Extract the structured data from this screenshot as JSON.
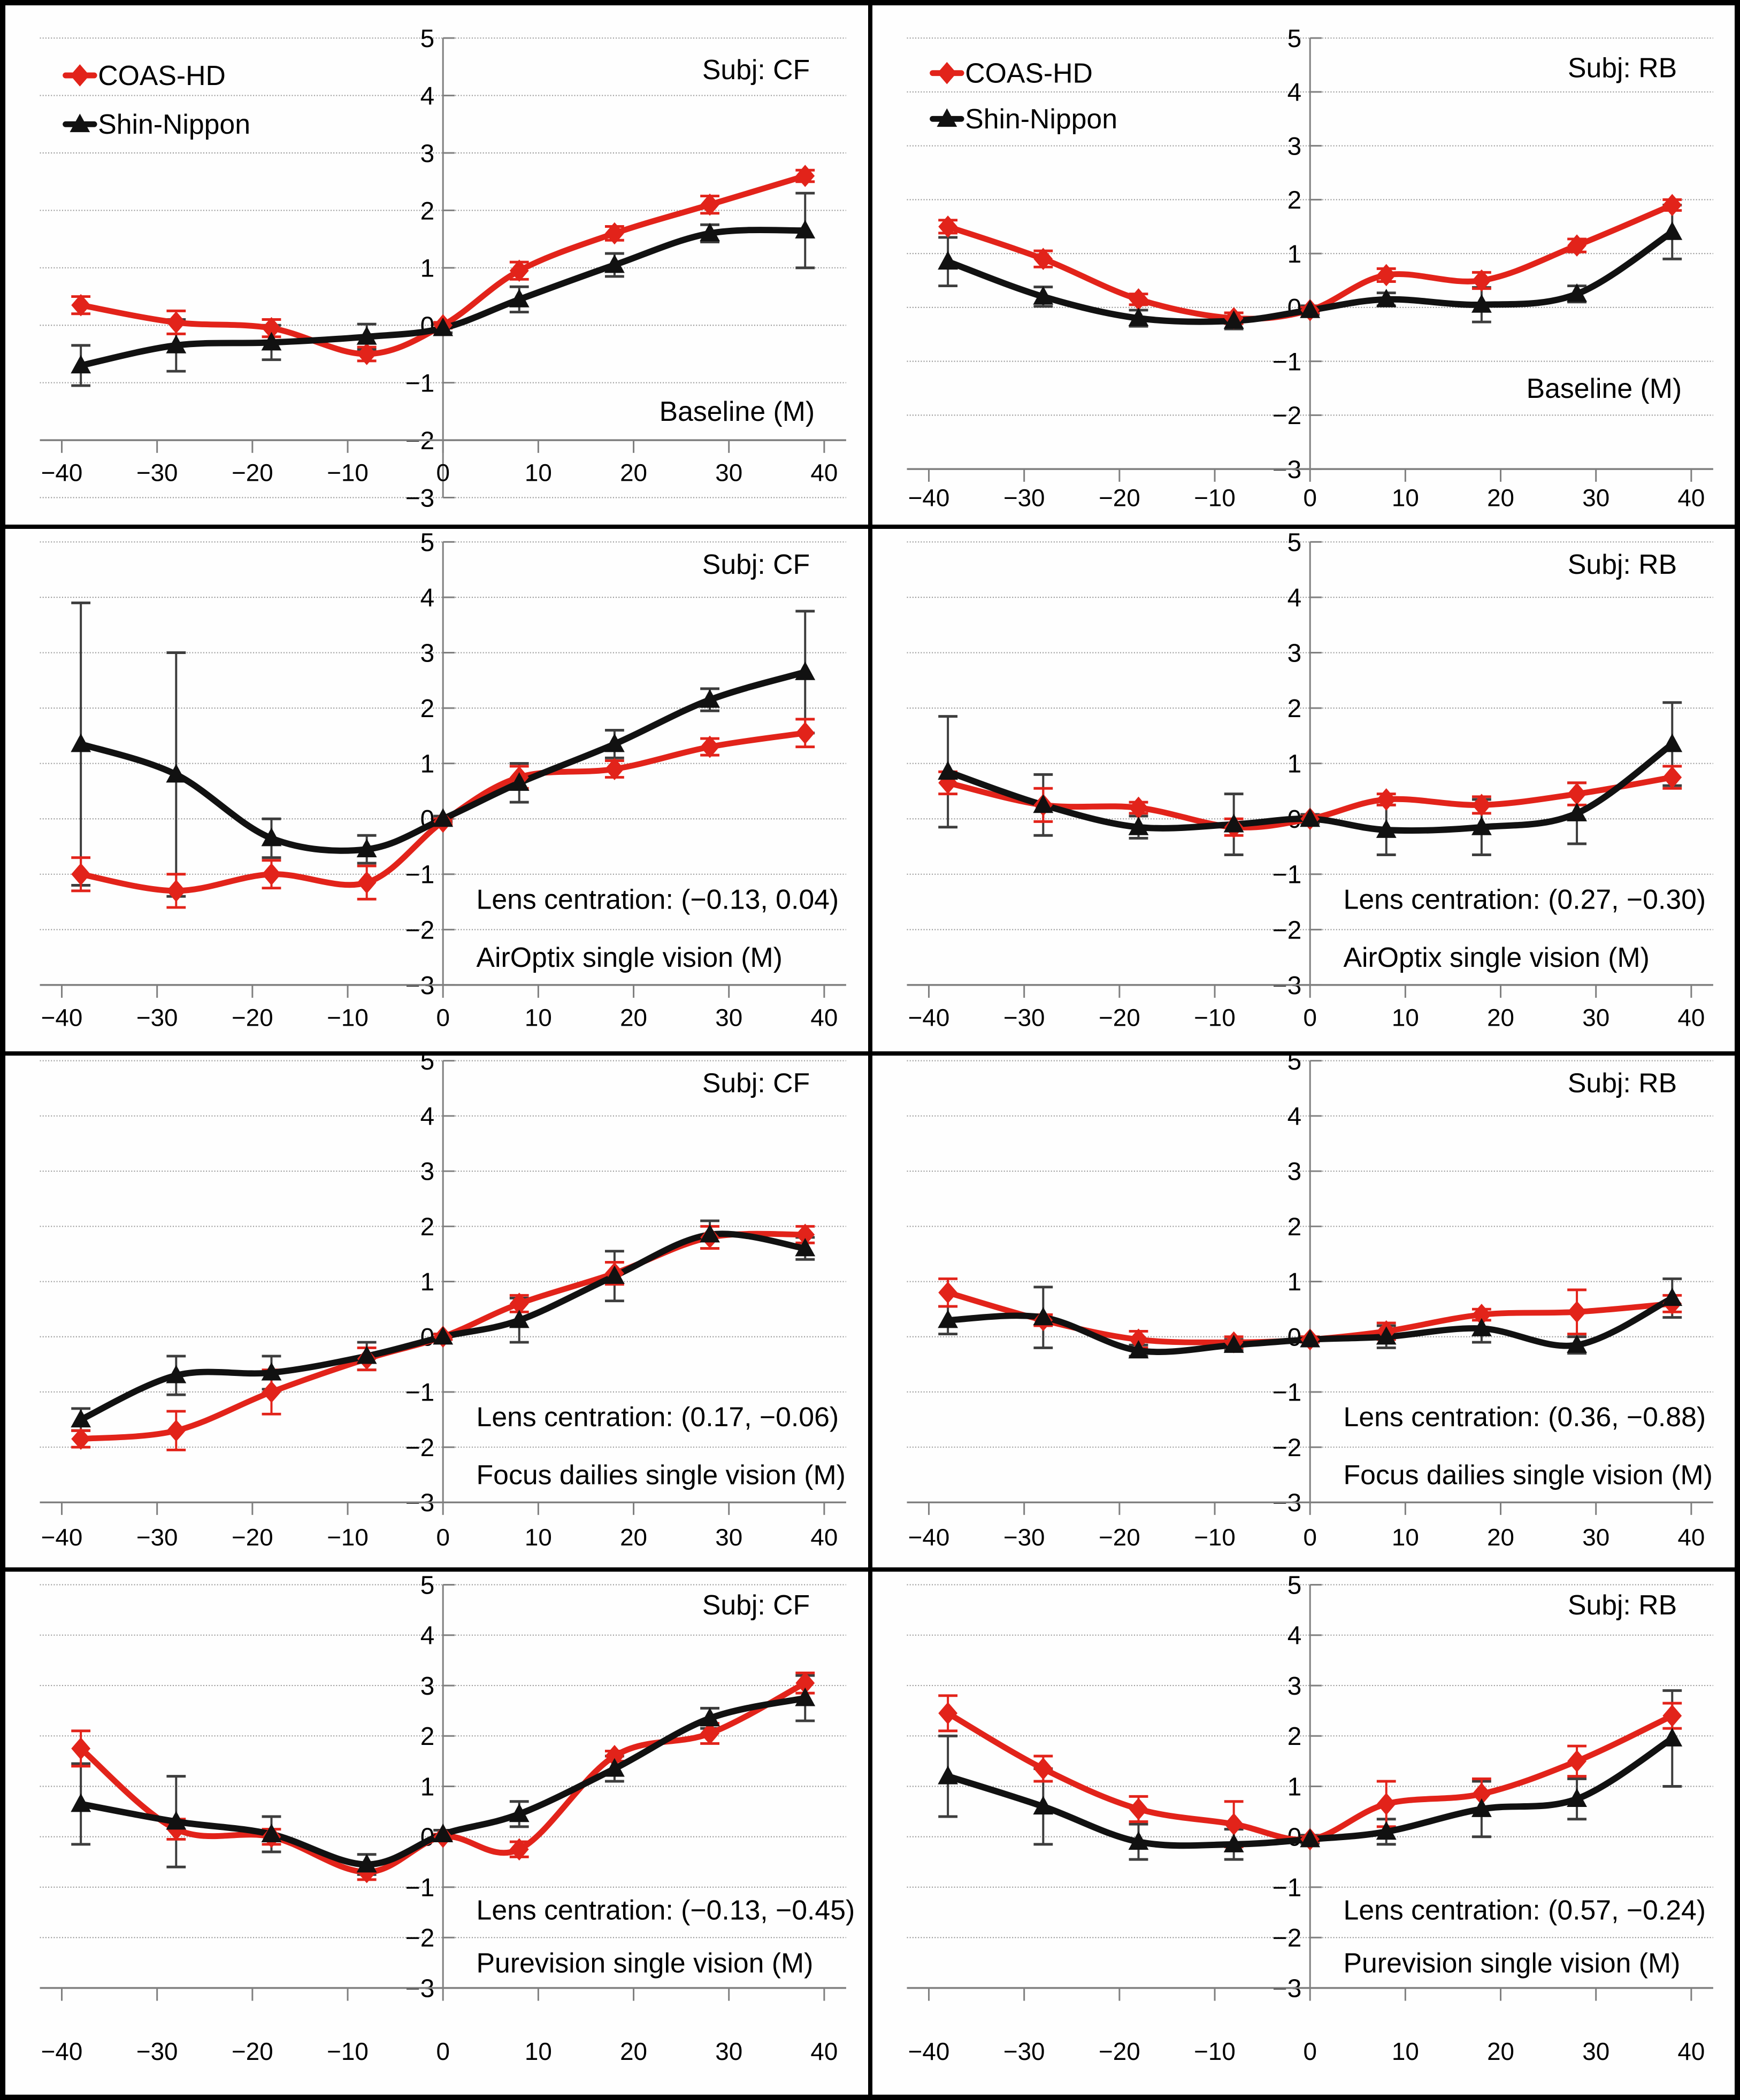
{
  "figure": {
    "background": "#ffffff",
    "border_color": "#000000",
    "grid_color": "#999999",
    "axis_color": "#7f7f7f"
  },
  "legend": {
    "items": [
      {
        "label": "COAS-HD",
        "color": "#e2231a",
        "marker": "diamond"
      },
      {
        "label": "Shin-Nippon",
        "color": "#111111",
        "marker": "triangle"
      }
    ]
  },
  "chart_data": [
    {
      "type": "line",
      "subject_label": "Subj: CF",
      "legend_visible": true,
      "x": [
        -38,
        -28,
        -18,
        -8,
        0,
        8,
        18,
        28,
        38
      ],
      "x_ticks": [
        -40,
        -30,
        -20,
        -10,
        0,
        10,
        20,
        30,
        40
      ],
      "y_ticks": [
        -3,
        -2,
        -1,
        0,
        1,
        2,
        3,
        4,
        5
      ],
      "xlim": [
        -42,
        42
      ],
      "ylim": [
        -3,
        5
      ],
      "x_axis_at": -2,
      "grid": "dotted-horizontal",
      "series": [
        {
          "name": "COAS-HD",
          "color": "#e2231a",
          "marker": "diamond",
          "values": [
            0.35,
            0.05,
            -0.05,
            -0.5,
            0,
            0.95,
            1.6,
            2.1,
            2.6
          ],
          "errors": [
            0.15,
            0.2,
            0.15,
            0.12,
            0.05,
            0.15,
            0.12,
            0.15,
            0.1
          ]
        },
        {
          "name": "Shin-Nippon",
          "color": "#111111",
          "marker": "triangle",
          "values": [
            -0.7,
            -0.35,
            -0.3,
            -0.2,
            -0.05,
            0.45,
            1.05,
            1.6,
            1.65
          ],
          "errors": [
            0.35,
            0.45,
            0.3,
            0.22,
            0.08,
            0.22,
            0.2,
            0.15,
            0.65
          ]
        }
      ],
      "annotations": [
        {
          "text": "Baseline (M)",
          "align": "end",
          "x": 39,
          "y": -1.5
        }
      ],
      "layout": {
        "top": 0.063,
        "bottom": 0.948,
        "label_frac": 0.9,
        "subject_y": 4.45
      }
    },
    {
      "type": "line",
      "subject_label": "Subj: RB",
      "legend_visible": true,
      "x": [
        -38,
        -28,
        -18,
        -8,
        0,
        8,
        18,
        28,
        38
      ],
      "x_ticks": [
        -40,
        -30,
        -20,
        -10,
        0,
        10,
        20,
        30,
        40
      ],
      "y_ticks": [
        -3,
        -2,
        -1,
        0,
        1,
        2,
        3,
        4,
        5
      ],
      "xlim": [
        -42,
        42
      ],
      "ylim": [
        -3,
        5
      ],
      "x_axis_at": -3,
      "grid": "dotted-horizontal",
      "series": [
        {
          "name": "COAS-HD",
          "color": "#e2231a",
          "marker": "diamond",
          "values": [
            1.5,
            0.9,
            0.15,
            -0.2,
            -0.05,
            0.6,
            0.5,
            1.15,
            1.9
          ],
          "errors": [
            0.12,
            0.15,
            0.1,
            0.1,
            0.05,
            0.12,
            0.15,
            0.12,
            0.1
          ]
        },
        {
          "name": "Shin-Nippon",
          "color": "#111111",
          "marker": "triangle",
          "values": [
            0.85,
            0.2,
            -0.2,
            -0.25,
            -0.05,
            0.15,
            0.05,
            0.25,
            1.4
          ],
          "errors": [
            0.45,
            0.18,
            0.15,
            0.15,
            0.08,
            0.12,
            0.32,
            0.15,
            0.5
          ]
        }
      ],
      "annotations": [
        {
          "text": "Baseline (M)",
          "align": "end",
          "x": 39,
          "y": -1.5
        }
      ],
      "layout": {
        "top": 0.063,
        "bottom": 0.893,
        "label_frac": 0.948,
        "subject_y": 4.45
      }
    },
    {
      "type": "line",
      "subject_label": "Subj: CF",
      "legend_visible": false,
      "x": [
        -38,
        -28,
        -18,
        -8,
        0,
        8,
        18,
        28,
        38
      ],
      "x_ticks": [
        -40,
        -30,
        -20,
        -10,
        0,
        10,
        20,
        30,
        40
      ],
      "y_ticks": [
        -3,
        -2,
        -1,
        0,
        1,
        2,
        3,
        4,
        5
      ],
      "xlim": [
        -42,
        42
      ],
      "ylim": [
        -3,
        5
      ],
      "x_axis_at": -3,
      "grid": "dotted-horizontal",
      "series": [
        {
          "name": "COAS-HD",
          "color": "#e2231a",
          "marker": "diamond",
          "values": [
            -1.0,
            -1.3,
            -1.0,
            -1.15,
            -0.05,
            0.75,
            0.9,
            1.3,
            1.55
          ],
          "errors": [
            0.3,
            0.3,
            0.25,
            0.3,
            0.05,
            0.2,
            0.15,
            0.15,
            0.25
          ]
        },
        {
          "name": "Shin-Nippon",
          "color": "#111111",
          "marker": "triangle",
          "values": [
            1.35,
            0.8,
            -0.35,
            -0.55,
            0.0,
            0.65,
            1.35,
            2.15,
            2.65
          ],
          "errors": [
            2.55,
            2.2,
            0.35,
            0.25,
            0.05,
            0.35,
            0.25,
            0.2,
            1.1
          ]
        }
      ],
      "annotations": [
        {
          "text": "Lens centration: (−0.13, 0.04)",
          "align": "start",
          "x": 3.5,
          "y": -1.45
        },
        {
          "text": "AirOptix single vision (M)",
          "align": "start",
          "x": 3.5,
          "y": -2.5
        }
      ],
      "layout": {
        "top": 0.025,
        "bottom": 0.873,
        "label_frac": 0.935,
        "subject_y": 4.6
      }
    },
    {
      "type": "line",
      "subject_label": "Subj: RB",
      "legend_visible": false,
      "x": [
        -38,
        -28,
        -18,
        -8,
        0,
        8,
        18,
        28,
        38
      ],
      "x_ticks": [
        -40,
        -30,
        -20,
        -10,
        0,
        10,
        20,
        30,
        40
      ],
      "y_ticks": [
        -3,
        -2,
        -1,
        0,
        1,
        2,
        3,
        4,
        5
      ],
      "xlim": [
        -42,
        42
      ],
      "ylim": [
        -3,
        5
      ],
      "x_axis_at": -3,
      "grid": "dotted-horizontal",
      "series": [
        {
          "name": "COAS-HD",
          "color": "#e2231a",
          "marker": "diamond",
          "values": [
            0.65,
            0.25,
            0.2,
            -0.15,
            0.0,
            0.35,
            0.25,
            0.45,
            0.75
          ],
          "errors": [
            0.2,
            0.3,
            0.1,
            0.15,
            0.05,
            0.1,
            0.15,
            0.2,
            0.2
          ]
        },
        {
          "name": "Shin-Nippon",
          "color": "#111111",
          "marker": "triangle",
          "values": [
            0.85,
            0.25,
            -0.15,
            -0.1,
            0.0,
            -0.2,
            -0.15,
            0.1,
            1.35
          ],
          "errors": [
            1.0,
            0.55,
            0.2,
            0.55,
            0.08,
            0.45,
            0.5,
            0.55,
            0.75
          ]
        }
      ],
      "annotations": [
        {
          "text": "Lens centration: (0.27, −0.30)",
          "align": "start",
          "x": 3.5,
          "y": -1.45
        },
        {
          "text": "AirOptix single vision (M)",
          "align": "start",
          "x": 3.5,
          "y": -2.5
        }
      ],
      "layout": {
        "top": 0.025,
        "bottom": 0.873,
        "label_frac": 0.935,
        "subject_y": 4.6
      }
    },
    {
      "type": "line",
      "subject_label": "Subj: CF",
      "legend_visible": false,
      "x": [
        -38,
        -28,
        -18,
        -8,
        0,
        8,
        18,
        28,
        38
      ],
      "x_ticks": [
        -40,
        -30,
        -20,
        -10,
        0,
        10,
        20,
        30,
        40
      ],
      "y_ticks": [
        -3,
        -2,
        -1,
        0,
        1,
        2,
        3,
        4,
        5
      ],
      "xlim": [
        -42,
        42
      ],
      "ylim": [
        -3,
        5
      ],
      "x_axis_at": -3,
      "grid": "dotted-horizontal",
      "series": [
        {
          "name": "COAS-HD",
          "color": "#e2231a",
          "marker": "diamond",
          "values": [
            -1.85,
            -1.7,
            -1.0,
            -0.4,
            0,
            0.6,
            1.15,
            1.8,
            1.85
          ],
          "errors": [
            0.15,
            0.35,
            0.4,
            0.2,
            0.05,
            0.15,
            0.2,
            0.2,
            0.15
          ]
        },
        {
          "name": "Shin-Nippon",
          "color": "#111111",
          "marker": "triangle",
          "values": [
            -1.5,
            -0.7,
            -0.65,
            -0.35,
            0,
            0.3,
            1.1,
            1.85,
            1.6
          ],
          "errors": [
            0.2,
            0.35,
            0.3,
            0.25,
            0.05,
            0.4,
            0.45,
            0.25,
            0.2
          ]
        }
      ],
      "annotations": [
        {
          "text": "Lens centration: (0.17, −0.06)",
          "align": "start",
          "x": 3.5,
          "y": -1.45
        },
        {
          "text": "Focus dailies single vision (M)",
          "align": "start",
          "x": 3.5,
          "y": -2.5
        }
      ],
      "layout": {
        "top": 0.01,
        "bottom": 0.873,
        "label_frac": 0.941,
        "subject_y": 4.6
      }
    },
    {
      "type": "line",
      "subject_label": "Subj: RB",
      "legend_visible": false,
      "x": [
        -38,
        -28,
        -18,
        -8,
        0,
        8,
        18,
        28,
        38
      ],
      "x_ticks": [
        -40,
        -30,
        -20,
        -10,
        0,
        10,
        20,
        30,
        40
      ],
      "y_ticks": [
        -3,
        -2,
        -1,
        0,
        1,
        2,
        3,
        4,
        5
      ],
      "xlim": [
        -42,
        42
      ],
      "ylim": [
        -3,
        5
      ],
      "x_axis_at": -3,
      "grid": "dotted-horizontal",
      "series": [
        {
          "name": "COAS-HD",
          "color": "#e2231a",
          "marker": "diamond",
          "values": [
            0.8,
            0.3,
            -0.05,
            -0.1,
            -0.05,
            0.1,
            0.4,
            0.45,
            0.6
          ],
          "errors": [
            0.25,
            0.1,
            0.15,
            0.1,
            0.05,
            0.15,
            0.1,
            0.4,
            0.15
          ]
        },
        {
          "name": "Shin-Nippon",
          "color": "#111111",
          "marker": "triangle",
          "values": [
            0.3,
            0.35,
            -0.25,
            -0.15,
            -0.05,
            0.0,
            0.15,
            -0.15,
            0.7
          ],
          "errors": [
            0.25,
            0.55,
            0.1,
            0.1,
            0.05,
            0.2,
            0.25,
            0.15,
            0.35
          ]
        }
      ],
      "annotations": [
        {
          "text": "Lens centration: (0.36, −0.88)",
          "align": "start",
          "x": 3.5,
          "y": -1.45
        },
        {
          "text": "Focus dailies single vision (M)",
          "align": "start",
          "x": 3.5,
          "y": -2.5
        }
      ],
      "layout": {
        "top": 0.01,
        "bottom": 0.873,
        "label_frac": 0.941,
        "subject_y": 4.6
      }
    },
    {
      "type": "line",
      "subject_label": "Subj: CF",
      "legend_visible": false,
      "x": [
        -38,
        -28,
        -18,
        -8,
        0,
        8,
        18,
        28,
        38
      ],
      "x_ticks": [
        -40,
        -30,
        -20,
        -10,
        0,
        10,
        20,
        30,
        40
      ],
      "y_ticks": [
        -3,
        -2,
        -1,
        0,
        1,
        2,
        3,
        4,
        5
      ],
      "xlim": [
        -42,
        42
      ],
      "ylim": [
        -3,
        5
      ],
      "x_axis_at": -3,
      "grid": "dotted-horizontal",
      "series": [
        {
          "name": "COAS-HD",
          "color": "#e2231a",
          "marker": "diamond",
          "values": [
            1.75,
            0.15,
            0.0,
            -0.7,
            0,
            -0.25,
            1.6,
            2.05,
            3.05
          ],
          "errors": [
            0.35,
            0.2,
            0.15,
            0.15,
            0.05,
            0.15,
            0.1,
            0.2,
            0.2
          ]
        },
        {
          "name": "Shin-Nippon",
          "color": "#111111",
          "marker": "triangle",
          "values": [
            0.65,
            0.3,
            0.05,
            -0.55,
            0.05,
            0.45,
            1.35,
            2.35,
            2.75
          ],
          "errors": [
            0.8,
            0.9,
            0.35,
            0.2,
            0.08,
            0.25,
            0.25,
            0.2,
            0.45
          ]
        }
      ],
      "annotations": [
        {
          "text": "Lens centration: (−0.13, −0.45)",
          "align": "start",
          "x": 3.5,
          "y": -1.45
        },
        {
          "text": "Purevision single vision (M)",
          "align": "start",
          "x": 3.5,
          "y": -2.5
        }
      ],
      "layout": {
        "top": 0.025,
        "bottom": 0.796,
        "label_frac": 0.917,
        "subject_y": 4.6
      }
    },
    {
      "type": "line",
      "subject_label": "Subj: RB",
      "legend_visible": false,
      "x": [
        -38,
        -28,
        -18,
        -8,
        0,
        8,
        18,
        28,
        38
      ],
      "x_ticks": [
        -40,
        -30,
        -20,
        -10,
        0,
        10,
        20,
        30,
        40
      ],
      "y_ticks": [
        -3,
        -2,
        -1,
        0,
        1,
        2,
        3,
        4,
        5
      ],
      "xlim": [
        -42,
        42
      ],
      "ylim": [
        -3,
        5
      ],
      "x_axis_at": -3,
      "grid": "dotted-horizontal",
      "series": [
        {
          "name": "COAS-HD",
          "color": "#e2231a",
          "marker": "diamond",
          "values": [
            2.45,
            1.35,
            0.55,
            0.25,
            -0.05,
            0.65,
            0.85,
            1.5,
            2.4
          ],
          "errors": [
            0.35,
            0.25,
            0.25,
            0.45,
            0.05,
            0.45,
            0.3,
            0.3,
            0.25
          ]
        },
        {
          "name": "Shin-Nippon",
          "color": "#111111",
          "marker": "triangle",
          "values": [
            1.2,
            0.6,
            -0.1,
            -0.15,
            -0.05,
            0.1,
            0.55,
            0.75,
            1.95
          ],
          "errors": [
            0.8,
            0.75,
            0.35,
            0.3,
            0.08,
            0.25,
            0.55,
            0.4,
            0.95
          ]
        }
      ],
      "annotations": [
        {
          "text": "Lens centration: (0.57, −0.24)",
          "align": "start",
          "x": 3.5,
          "y": -1.45
        },
        {
          "text": "Purevision single vision (M)",
          "align": "start",
          "x": 3.5,
          "y": -2.5
        }
      ],
      "layout": {
        "top": 0.025,
        "bottom": 0.796,
        "label_frac": 0.917,
        "subject_y": 4.6
      }
    }
  ]
}
